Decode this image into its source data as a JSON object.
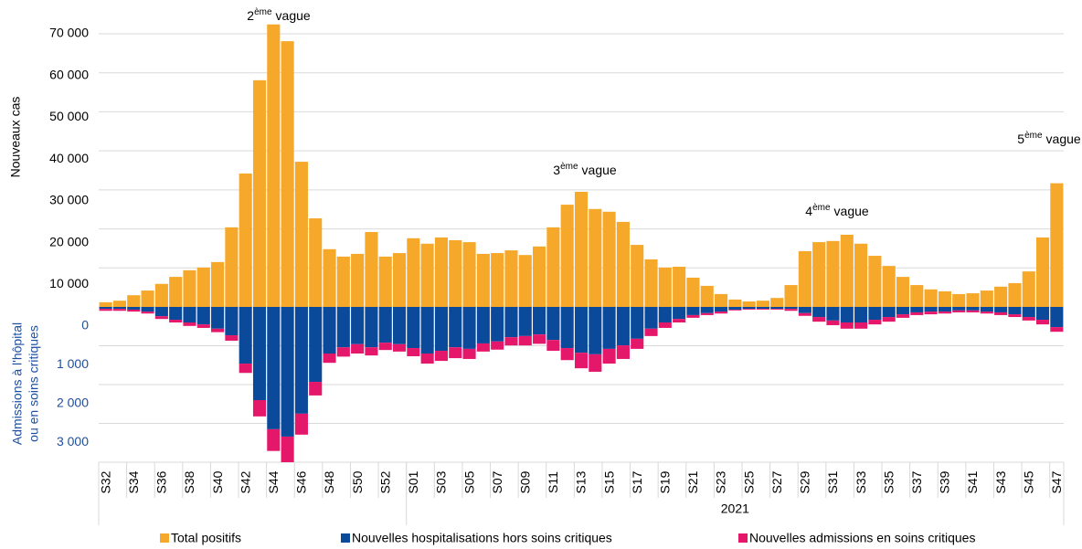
{
  "chart_data": {
    "type": "bar",
    "y_label": "Nouveaux cas",
    "y2_label": [
      "Admissions à l'hôpital",
      "ou en soins critiques"
    ],
    "x_group_label": "2021",
    "categories": [
      "S32",
      null,
      "S34",
      null,
      "S36",
      null,
      "S38",
      null,
      "S40",
      null,
      "S42",
      null,
      "S44",
      null,
      "S46",
      null,
      "S48",
      null,
      "S50",
      null,
      "S52",
      null,
      "S01",
      null,
      "S03",
      null,
      "S05",
      null,
      "S07",
      null,
      "S09",
      null,
      "S11",
      null,
      "S13",
      null,
      "S15",
      null,
      "S17",
      null,
      "S19",
      null,
      "S21",
      null,
      "S23",
      null,
      "S25",
      null,
      "S27",
      null,
      "S29",
      null,
      "S31",
      null,
      "S33",
      null,
      "S35",
      null,
      "S37",
      null,
      "S39",
      null,
      "S41",
      null,
      "S43",
      null,
      "S45",
      null,
      "S47"
    ],
    "series": [
      {
        "name": "Total positifs",
        "color": "#f5a82a",
        "axis": "y",
        "values": [
          1200,
          1600,
          3000,
          4200,
          5900,
          7700,
          9400,
          10100,
          11500,
          20400,
          34200,
          58100,
          72400,
          68100,
          37200,
          22700,
          14800,
          12900,
          13600,
          19200,
          12900,
          13800,
          17600,
          16200,
          17800,
          17100,
          16600,
          13600,
          13800,
          14500,
          13300,
          15500,
          20400,
          26200,
          29500,
          25100,
          24400,
          21800,
          15900,
          12200,
          10100,
          10300,
          7500,
          5400,
          3300,
          1900,
          1400,
          1600,
          2300,
          5600,
          14300,
          16600,
          16900,
          18500,
          16200,
          13100,
          10500,
          7700,
          5600,
          4500,
          4000,
          3300,
          3500,
          4200,
          5200,
          6100,
          9100,
          17800,
          31700
        ]
      },
      {
        "name": "Nouvelles hospitalisations hors soins critiques",
        "color": "#0b4a9b",
        "axis": "y2",
        "values": [
          50,
          50,
          70,
          120,
          240,
          330,
          400,
          450,
          560,
          730,
          1460,
          2400,
          3150,
          3340,
          2750,
          1930,
          1200,
          1040,
          960,
          1040,
          920,
          960,
          1060,
          1200,
          1130,
          1040,
          1080,
          940,
          890,
          780,
          750,
          710,
          850,
          1060,
          1180,
          1220,
          1080,
          990,
          820,
          560,
          400,
          310,
          210,
          160,
          120,
          70,
          50,
          50,
          50,
          50,
          160,
          260,
          350,
          400,
          400,
          330,
          260,
          190,
          140,
          120,
          120,
          90,
          90,
          120,
          140,
          190,
          260,
          330,
          520
        ]
      },
      {
        "name": "Nouvelles admissions en soins critiques",
        "color": "#e5176b",
        "axis": "y2",
        "values": [
          50,
          50,
          50,
          50,
          70,
          70,
          90,
          90,
          90,
          140,
          240,
          420,
          560,
          660,
          540,
          350,
          240,
          240,
          240,
          210,
          190,
          190,
          210,
          260,
          260,
          280,
          260,
          210,
          210,
          210,
          240,
          240,
          280,
          310,
          400,
          450,
          380,
          350,
          260,
          190,
          140,
          90,
          70,
          50,
          50,
          20,
          20,
          20,
          20,
          50,
          70,
          120,
          120,
          160,
          160,
          120,
          120,
          90,
          70,
          70,
          50,
          50,
          50,
          50,
          70,
          70,
          90,
          120,
          120
        ]
      }
    ],
    "ylim": [
      0,
      70000
    ],
    "yticks": [
      {
        "value": 10000,
        "label": "10 000"
      },
      {
        "value": 20000,
        "label": "20 000"
      },
      {
        "value": 30000,
        "label": "30 000"
      },
      {
        "value": 40000,
        "label": "40 000"
      },
      {
        "value": 50000,
        "label": "50 000"
      },
      {
        "value": 60000,
        "label": "60 000"
      },
      {
        "value": 70000,
        "label": "70 000"
      }
    ],
    "y2lim": [
      0,
      4000
    ],
    "y2ticks": [
      0,
      {
        "value": 1000,
        "label": "1 000"
      },
      {
        "value": 2000,
        "label": "2 000"
      },
      {
        "value": 3000,
        "label": "3 000"
      }
    ],
    "grid": true,
    "legend": "bottom",
    "annotations": [
      {
        "number": "2",
        "sup": "ème",
        "text": "vague"
      },
      {
        "number": "3",
        "sup": "ème",
        "text": "vague"
      },
      {
        "number": "4",
        "sup": "ème",
        "text": "vague"
      },
      {
        "number": "5",
        "sup": "ème",
        "text": "vague"
      }
    ]
  }
}
